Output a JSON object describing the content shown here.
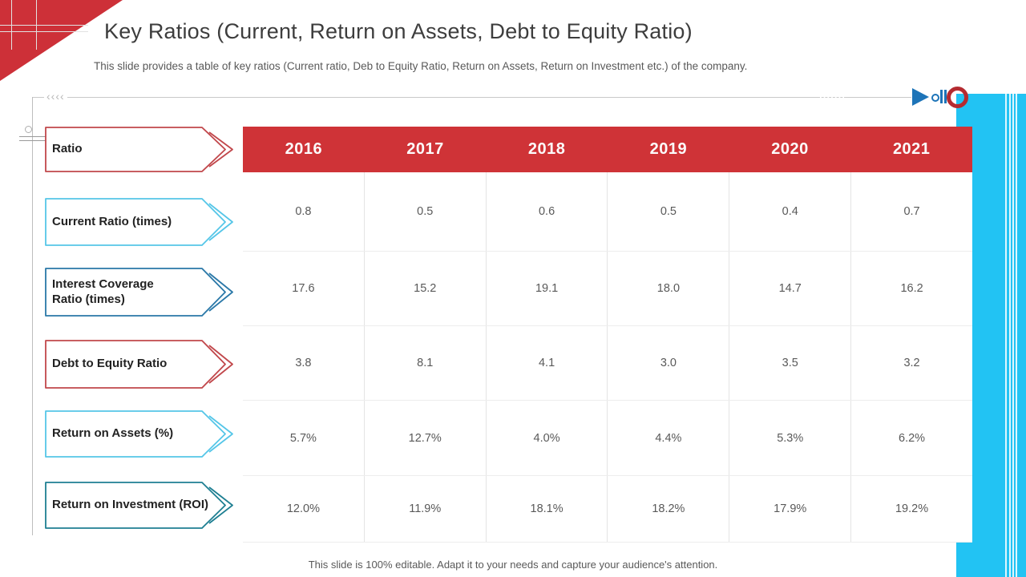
{
  "slide": {
    "title": "Key Ratios (Current, Return on Assets, Debt to Equity Ratio)",
    "subtitle": "This slide provides a table of key ratios (Current ratio, Deb to Equity Ratio, Return on Assets, Return on Investment etc.) of the company.",
    "footer": "This slide is 100% editable. Adapt it to your needs and capture your audience's attention."
  },
  "decoration": {
    "chevrons": "‹‹‹‹",
    "icons": [
      "play-icon",
      "dot-icon",
      "pause-icon",
      "record-ring-icon"
    ],
    "colors": {
      "triangle_red": "#cd3038",
      "header_red": "#cf3337",
      "side_bar_cyan": "#22c3f3",
      "media_blue": "#1d74b8",
      "ring_red": "#b42b31"
    }
  },
  "arrow_colors": {
    "red": "#c1474b",
    "cyan": "#55c6e8",
    "blue": "#2a78a8",
    "teal": "#1e7f92"
  },
  "table": {
    "corner_label": "Ratio",
    "years": [
      "2016",
      "2017",
      "2018",
      "2019",
      "2020",
      "2021"
    ],
    "rows": [
      {
        "label": "Current Ratio (times)",
        "style": "cyan",
        "two_line": false,
        "values": [
          "0.8",
          "0.5",
          "0.6",
          "0.5",
          "0.4",
          "0.7"
        ]
      },
      {
        "label": "Interest Coverage Ratio (times)",
        "style": "blue",
        "two_line": true,
        "values": [
          "17.6",
          "15.2",
          "19.1",
          "18.0",
          "14.7",
          "16.2"
        ]
      },
      {
        "label": "Debt to Equity Ratio",
        "style": "red",
        "two_line": false,
        "values": [
          "3.8",
          "8.1",
          "4.1",
          "3.0",
          "3.5",
          "3.2"
        ]
      },
      {
        "label": "Return on Assets (%)",
        "style": "cyan",
        "two_line": false,
        "values": [
          "5.7%",
          "12.7%",
          "4.0%",
          "4.4%",
          "5.3%",
          "6.2%"
        ]
      },
      {
        "label": "Return on Investment (ROI)",
        "style": "teal",
        "two_line": false,
        "values": [
          "12.0%",
          "11.9%",
          "18.1%",
          "18.2%",
          "17.9%",
          "19.2%"
        ]
      }
    ]
  },
  "chart_data": {
    "type": "table",
    "title": "Key Ratios (Current, Return on Assets, Debt to Equity Ratio)",
    "columns": [
      "Ratio",
      "2016",
      "2017",
      "2018",
      "2019",
      "2020",
      "2021"
    ],
    "rows": [
      [
        "Current Ratio (times)",
        "0.8",
        "0.5",
        "0.6",
        "0.5",
        "0.4",
        "0.7"
      ],
      [
        "Interest Coverage Ratio (times)",
        "17.6",
        "15.2",
        "19.1",
        "18.0",
        "14.7",
        "16.2"
      ],
      [
        "Debt to Equity Ratio",
        "3.8",
        "8.1",
        "4.1",
        "3.0",
        "3.5",
        "3.2"
      ],
      [
        "Return on Assets (%)",
        "5.7%",
        "12.7%",
        "4.0%",
        "4.4%",
        "5.3%",
        "6.2%"
      ],
      [
        "Return on Investment (ROI)",
        "12.0%",
        "11.9%",
        "18.1%",
        "18.2%",
        "17.9%",
        "19.2%"
      ]
    ]
  }
}
